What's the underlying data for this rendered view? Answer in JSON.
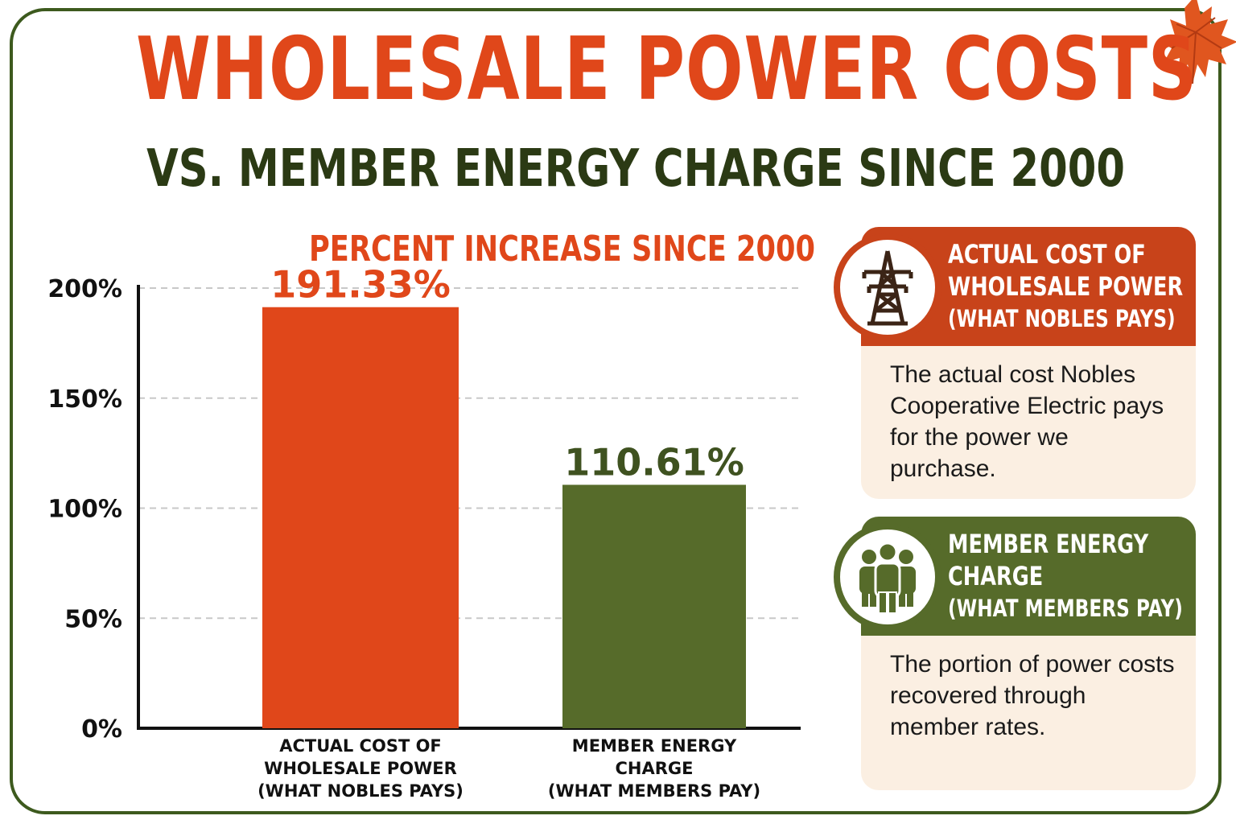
{
  "header": {
    "title": "WHOLESALE POWER COSTS",
    "subtitle": "VS. MEMBER ENERGY CHARGE SINCE 2000"
  },
  "colors": {
    "orange": "#e0471a",
    "green": "#566b2a",
    "dark_green": "#2b3a14",
    "card_bg": "#fbefe2"
  },
  "chart_data": {
    "type": "bar",
    "title": "PERCENT INCREASE SINCE 2000",
    "categories": [
      [
        "ACTUAL COST OF",
        "WHOLESALE POWER",
        "(WHAT NOBLES PAYS)"
      ],
      [
        "MEMBER ENERGY",
        "CHARGE",
        "(WHAT MEMBERS PAY)"
      ]
    ],
    "values": [
      191.33,
      110.61
    ],
    "data_labels": [
      "191.33%",
      "110.61%"
    ],
    "bar_colors": [
      "#e0471a",
      "#566b2a"
    ],
    "label_colors": [
      "#e0471a",
      "#3f5220"
    ],
    "yticks": [
      0,
      50,
      100,
      150,
      200
    ],
    "ytick_labels": [
      "0%",
      "50%",
      "100%",
      "150%",
      "200%"
    ],
    "ylim": [
      0,
      200
    ],
    "grid": true,
    "xlabel": "",
    "ylabel": ""
  },
  "legend_cards": [
    {
      "icon": "transmission-tower-icon",
      "heading": [
        "ACTUAL COST OF",
        "WHOLESALE POWER",
        "(WHAT NOBLES PAYS)"
      ],
      "body": "The actual cost Nobles Cooperative Electric pays for the power we purchase."
    },
    {
      "icon": "people-group-icon",
      "heading": [
        "MEMBER ENERGY",
        "CHARGE",
        "(WHAT MEMBERS PAY)"
      ],
      "body": "The portion of power costs recovered through member rates."
    }
  ]
}
